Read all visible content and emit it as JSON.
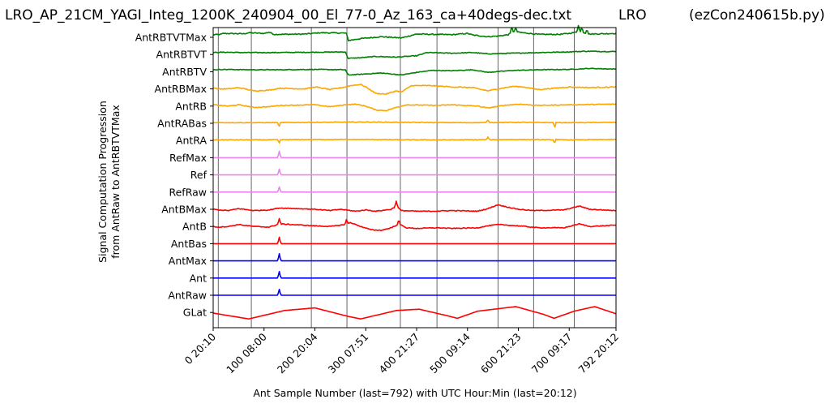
{
  "chart_data": {
    "type": "line",
    "title": "LRO_AP_21CM_YAGI_Integ_1200K_240904_00_El_77-0_Az_163_ca+40degs-dec.txt",
    "title_center": "LRO",
    "title_right": "(ezCon240615b.py)",
    "xlabel": "Ant Sample Number (last=792) with UTC Hour:Min (last=20:12)",
    "ylabel_line1": "Signal Computation Progression",
    "ylabel_line2": "from AntRaw to AntRBTVTMax",
    "xlim": [
      0,
      792
    ],
    "grid_x": true,
    "x_ticks": [
      {
        "x": 0,
        "label": "0  20:10"
      },
      {
        "x": 100,
        "label": "100  08:00"
      },
      {
        "x": 200,
        "label": "200  20:04"
      },
      {
        "x": 300,
        "label": "300  07:51"
      },
      {
        "x": 400,
        "label": "400  21:27"
      },
      {
        "x": 500,
        "label": "500  09:14"
      },
      {
        "x": 600,
        "label": "600  21:23"
      },
      {
        "x": 700,
        "label": "700  09:17"
      },
      {
        "x": 792,
        "label": "792  20:12"
      }
    ],
    "vertical_gridlines_x": [
      10,
      75,
      193,
      263,
      368,
      440,
      560,
      630,
      710
    ],
    "series_order_top_to_bottom": [
      "AntRBTVTMax",
      "AntRBTVT",
      "AntRBTV",
      "AntRBMax",
      "AntRB",
      "AntRABas",
      "AntRA",
      "RefMax",
      "Ref",
      "RefRaw",
      "AntBMax",
      "AntB",
      "AntBas",
      "AntMax",
      "Ant",
      "AntRaw",
      "GLat"
    ],
    "series": [
      {
        "name": "AntRBTVTMax",
        "color": "#008000",
        "points": [
          [
            0,
            0.4
          ],
          [
            15,
            0.45
          ],
          [
            20,
            0.6
          ],
          [
            60,
            0.55
          ],
          [
            70,
            0.7
          ],
          [
            100,
            0.6
          ],
          [
            110,
            0.8
          ],
          [
            120,
            0.45
          ],
          [
            180,
            0.5
          ],
          [
            210,
            0.7
          ],
          [
            260,
            0.65
          ],
          [
            263,
            0.5
          ],
          [
            265,
            -0.5
          ],
          [
            290,
            -0.2
          ],
          [
            330,
            0.1
          ],
          [
            370,
            -0.1
          ],
          [
            400,
            0.5
          ],
          [
            470,
            0.4
          ],
          [
            500,
            0.6
          ],
          [
            510,
            0.35
          ],
          [
            540,
            0.1
          ],
          [
            560,
            0.2
          ],
          [
            580,
            0.4
          ],
          [
            590,
            0.9
          ],
          [
            610,
            0.7
          ],
          [
            640,
            0.45
          ],
          [
            680,
            0.45
          ],
          [
            700,
            0.6
          ],
          [
            720,
            0.9
          ],
          [
            740,
            0.5
          ],
          [
            792,
            0.6
          ]
        ],
        "noise": 0.08,
        "spikes": [
          [
            587,
            0.9
          ],
          [
            595,
            0.7
          ],
          [
            718,
            1.0
          ],
          [
            725,
            0.8
          ],
          [
            735,
            0.7
          ]
        ]
      },
      {
        "name": "AntRBTVT",
        "color": "#008000",
        "points": [
          [
            0,
            0.3
          ],
          [
            20,
            0.35
          ],
          [
            60,
            0.3
          ],
          [
            120,
            0.3
          ],
          [
            200,
            0.35
          ],
          [
            260,
            0.4
          ],
          [
            265,
            -0.6
          ],
          [
            290,
            -0.5
          ],
          [
            320,
            -0.3
          ],
          [
            360,
            -0.4
          ],
          [
            400,
            -0.2
          ],
          [
            420,
            0.3
          ],
          [
            470,
            0.2
          ],
          [
            510,
            0.3
          ],
          [
            540,
            0.1
          ],
          [
            590,
            0.2
          ],
          [
            640,
            0.3
          ],
          [
            700,
            0.4
          ],
          [
            730,
            0.5
          ],
          [
            792,
            0.45
          ]
        ],
        "noise": 0.06,
        "spikes": []
      },
      {
        "name": "AntRBTV",
        "color": "#008000",
        "points": [
          [
            0,
            0.3
          ],
          [
            20,
            0.35
          ],
          [
            80,
            0.3
          ],
          [
            120,
            0.3
          ],
          [
            200,
            0.35
          ],
          [
            260,
            0.3
          ],
          [
            265,
            -0.5
          ],
          [
            290,
            -0.4
          ],
          [
            330,
            -0.2
          ],
          [
            370,
            -0.5
          ],
          [
            400,
            -0.1
          ],
          [
            430,
            0.2
          ],
          [
            470,
            0.15
          ],
          [
            510,
            0.3
          ],
          [
            540,
            -0.1
          ],
          [
            590,
            0.2
          ],
          [
            640,
            0.3
          ],
          [
            700,
            0.35
          ],
          [
            740,
            0.5
          ],
          [
            792,
            0.4
          ]
        ],
        "noise": 0.05,
        "spikes": []
      },
      {
        "name": "AntRBMax",
        "color": "#FFA500",
        "points": [
          [
            0,
            0.2
          ],
          [
            10,
            0.0
          ],
          [
            30,
            0.0
          ],
          [
            50,
            0.2
          ],
          [
            80,
            -0.3
          ],
          [
            110,
            -0.2
          ],
          [
            130,
            0.1
          ],
          [
            180,
            0.0
          ],
          [
            200,
            0.3
          ],
          [
            230,
            -0.1
          ],
          [
            260,
            0.3
          ],
          [
            270,
            0.5
          ],
          [
            290,
            0.7
          ],
          [
            300,
            0.3
          ],
          [
            320,
            -0.7
          ],
          [
            340,
            -0.8
          ],
          [
            360,
            -0.3
          ],
          [
            370,
            -0.5
          ],
          [
            390,
            0.5
          ],
          [
            430,
            0.5
          ],
          [
            470,
            0.3
          ],
          [
            510,
            0.2
          ],
          [
            540,
            -0.3
          ],
          [
            560,
            0.0
          ],
          [
            590,
            0.4
          ],
          [
            610,
            0.3
          ],
          [
            640,
            -0.1
          ],
          [
            700,
            0.3
          ],
          [
            740,
            0.2
          ],
          [
            792,
            0.3
          ]
        ],
        "noise": 0.07,
        "spikes": []
      },
      {
        "name": "AntRB",
        "color": "#FFA500",
        "points": [
          [
            0,
            0.2
          ],
          [
            30,
            0.0
          ],
          [
            50,
            0.2
          ],
          [
            80,
            -0.2
          ],
          [
            110,
            -0.1
          ],
          [
            130,
            0.1
          ],
          [
            200,
            0.2
          ],
          [
            230,
            -0.1
          ],
          [
            260,
            0.2
          ],
          [
            280,
            0.3
          ],
          [
            300,
            0.0
          ],
          [
            320,
            -0.6
          ],
          [
            340,
            -0.7
          ],
          [
            360,
            -0.2
          ],
          [
            380,
            0.2
          ],
          [
            440,
            0.1
          ],
          [
            470,
            0.2
          ],
          [
            520,
            0.0
          ],
          [
            540,
            -0.3
          ],
          [
            570,
            0.1
          ],
          [
            600,
            0.3
          ],
          [
            640,
            0.1
          ],
          [
            700,
            0.2
          ],
          [
            792,
            0.3
          ]
        ],
        "noise": 0.06,
        "spikes": []
      },
      {
        "name": "AntRABas",
        "color": "#FFA500",
        "points": [
          [
            0,
            0.1
          ],
          [
            100,
            0.1
          ],
          [
            200,
            0.15
          ],
          [
            300,
            0.2
          ],
          [
            380,
            0.15
          ],
          [
            500,
            0.1
          ],
          [
            600,
            0.15
          ],
          [
            700,
            0.1
          ],
          [
            792,
            0.15
          ]
        ],
        "noise": 0.05,
        "spikes": [
          [
            130,
            -0.8
          ],
          [
            131,
            0.3
          ],
          [
            540,
            0.4
          ],
          [
            672,
            -1.0
          ],
          [
            673,
            0.5
          ]
        ]
      },
      {
        "name": "AntRA",
        "color": "#FFA500",
        "points": [
          [
            0,
            0.1
          ],
          [
            100,
            0.1
          ],
          [
            200,
            0.15
          ],
          [
            300,
            0.15
          ],
          [
            400,
            0.1
          ],
          [
            500,
            0.1
          ],
          [
            600,
            0.15
          ],
          [
            700,
            0.1
          ],
          [
            792,
            0.15
          ]
        ],
        "noise": 0.05,
        "spikes": [
          [
            130,
            -0.7
          ],
          [
            131,
            0.3
          ],
          [
            540,
            0.4
          ],
          [
            672,
            -0.9
          ],
          [
            673,
            0.7
          ]
        ]
      },
      {
        "name": "RefMax",
        "color": "#EE82EE",
        "points": [
          [
            0,
            0.0
          ],
          [
            792,
            0.0
          ]
        ],
        "noise": 0,
        "spikes": [
          [
            130,
            1.0
          ]
        ]
      },
      {
        "name": "Ref",
        "color": "#EE82EE",
        "points": [
          [
            0,
            0.0
          ],
          [
            792,
            0.0
          ]
        ],
        "noise": 0,
        "spikes": [
          [
            130,
            0.9
          ]
        ]
      },
      {
        "name": "RefRaw",
        "color": "#EE82EE",
        "points": [
          [
            0,
            0.0
          ],
          [
            792,
            0.0
          ]
        ],
        "noise": 0,
        "spikes": [
          [
            130,
            0.8
          ]
        ]
      },
      {
        "name": "AntBMax",
        "color": "#FF0000",
        "points": [
          [
            0,
            0.0
          ],
          [
            10,
            -0.1
          ],
          [
            30,
            -0.2
          ],
          [
            50,
            0.1
          ],
          [
            80,
            -0.2
          ],
          [
            110,
            -0.1
          ],
          [
            130,
            0.2
          ],
          [
            200,
            0.0
          ],
          [
            230,
            -0.2
          ],
          [
            250,
            0.0
          ],
          [
            280,
            -0.3
          ],
          [
            300,
            -0.1
          ],
          [
            320,
            -0.3
          ],
          [
            350,
            0.0
          ],
          [
            360,
            0.5
          ],
          [
            370,
            -0.2
          ],
          [
            400,
            -0.3
          ],
          [
            430,
            -0.3
          ],
          [
            470,
            -0.2
          ],
          [
            520,
            -0.3
          ],
          [
            540,
            0.1
          ],
          [
            560,
            0.7
          ],
          [
            575,
            0.4
          ],
          [
            600,
            0.0
          ],
          [
            630,
            -0.2
          ],
          [
            690,
            -0.1
          ],
          [
            720,
            0.5
          ],
          [
            740,
            0.0
          ],
          [
            792,
            -0.2
          ]
        ],
        "noise": 0.06,
        "spikes": [
          [
            360,
            0.8
          ]
        ]
      },
      {
        "name": "AntB",
        "color": "#FF0000",
        "points": [
          [
            0,
            0.0
          ],
          [
            10,
            -0.1
          ],
          [
            30,
            0.0
          ],
          [
            50,
            0.3
          ],
          [
            80,
            0.0
          ],
          [
            110,
            -0.1
          ],
          [
            130,
            0.4
          ],
          [
            200,
            0.1
          ],
          [
            230,
            0.0
          ],
          [
            260,
            0.3
          ],
          [
            270,
            0.6
          ],
          [
            290,
            0.0
          ],
          [
            310,
            -0.5
          ],
          [
            330,
            -0.6
          ],
          [
            350,
            -0.2
          ],
          [
            365,
            0.4
          ],
          [
            380,
            -0.2
          ],
          [
            400,
            -0.3
          ],
          [
            440,
            -0.2
          ],
          [
            470,
            -0.3
          ],
          [
            520,
            -0.2
          ],
          [
            540,
            0.1
          ],
          [
            560,
            0.3
          ],
          [
            600,
            0.1
          ],
          [
            640,
            -0.2
          ],
          [
            690,
            -0.2
          ],
          [
            720,
            0.4
          ],
          [
            740,
            0.0
          ],
          [
            792,
            0.2
          ]
        ],
        "noise": 0.06,
        "spikes": [
          [
            130,
            0.8
          ],
          [
            262,
            0.7
          ],
          [
            365,
            0.6
          ]
        ]
      },
      {
        "name": "AntBas",
        "color": "#FF0000",
        "points": [
          [
            0,
            0.0
          ],
          [
            792,
            0.0
          ]
        ],
        "noise": 0,
        "spikes": [
          [
            130,
            1.0
          ]
        ]
      },
      {
        "name": "AntMax",
        "color": "#0000FF",
        "points": [
          [
            0,
            0.0
          ],
          [
            792,
            0.0
          ]
        ],
        "noise": 0,
        "spikes": [
          [
            130,
            1.1
          ]
        ]
      },
      {
        "name": "Ant",
        "color": "#0000FF",
        "points": [
          [
            0,
            0.0
          ],
          [
            792,
            0.0
          ]
        ],
        "noise": 0,
        "spikes": [
          [
            130,
            1.0
          ]
        ]
      },
      {
        "name": "AntRaw",
        "color": "#0000FF",
        "points": [
          [
            0,
            0.0
          ],
          [
            792,
            0.0
          ]
        ],
        "noise": 0,
        "spikes": [
          [
            130,
            0.9
          ]
        ]
      },
      {
        "name": "GLat",
        "color": "#FF0000",
        "points": [
          [
            0,
            -0.1
          ],
          [
            70,
            -1.0
          ],
          [
            140,
            0.3
          ],
          [
            200,
            0.7
          ],
          [
            265,
            -0.6
          ],
          [
            290,
            -1.0
          ],
          [
            360,
            0.3
          ],
          [
            405,
            0.5
          ],
          [
            460,
            -0.5
          ],
          [
            480,
            -0.9
          ],
          [
            520,
            0.2
          ],
          [
            595,
            0.9
          ],
          [
            650,
            -0.3
          ],
          [
            670,
            -0.9
          ],
          [
            710,
            0.2
          ],
          [
            750,
            0.9
          ],
          [
            792,
            -0.2
          ]
        ],
        "noise": 0,
        "spikes": []
      }
    ]
  }
}
